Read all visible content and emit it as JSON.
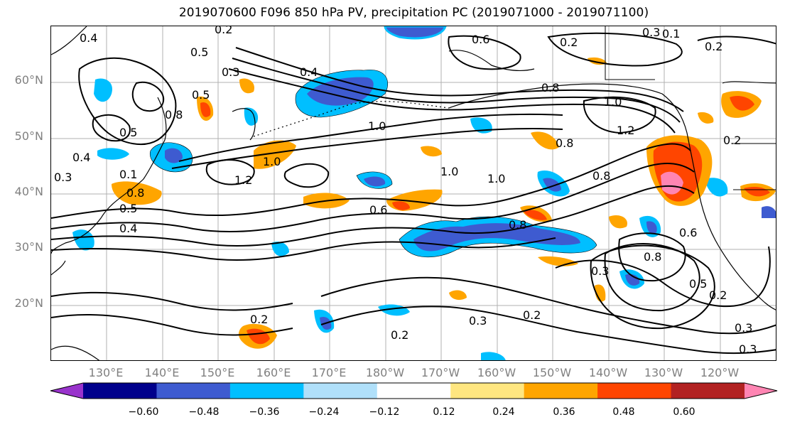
{
  "title": "2019070600 F096 850 hPa PV, precipitation PC (2019071000 - 2019071100)",
  "lat_labels": [
    "60°N",
    "50°N",
    "40°N",
    "30°N",
    "20°N"
  ],
  "lon_labels": [
    "130°E",
    "140°E",
    "150°E",
    "160°E",
    "170°E",
    "180°W",
    "170°W",
    "160°W",
    "150°W",
    "140°W",
    "130°W",
    "120°W"
  ],
  "colorbar": {
    "ticks": [
      "−0.60",
      "−0.48",
      "−0.36",
      "−0.24",
      "−0.12",
      "0.12",
      "0.24",
      "0.36",
      "0.48",
      "0.60"
    ],
    "colors": [
      "#9933cc",
      "#00008b",
      "#3e5bd0",
      "#00bfff",
      "#b0e0fa",
      "#ffffff",
      "#ffe680",
      "#ffa500",
      "#ff4500",
      "#b22222",
      "#ff85b3"
    ]
  },
  "contour_labels": [
    "0.4",
    "0.5",
    "0.3",
    "0.5",
    "0.8",
    "0.4",
    "0.2",
    "0.6",
    "0.2",
    "0.3",
    "0.5",
    "1.0",
    "0.8",
    "1.0",
    "1.2",
    "0.2",
    "1.2",
    "1.0",
    "1.0",
    "0.8",
    "0.8",
    "1.0",
    "0.6",
    "0.8",
    "0.6",
    "0.8",
    "0.5",
    "0.3",
    "0.2",
    "0.2",
    "0.3",
    "0.2",
    "0.4",
    "0.8",
    "0.2",
    "0.3",
    "0.4",
    "0.3",
    "0.2",
    "0.5",
    "0.3",
    "0.1",
    "0.1"
  ]
}
